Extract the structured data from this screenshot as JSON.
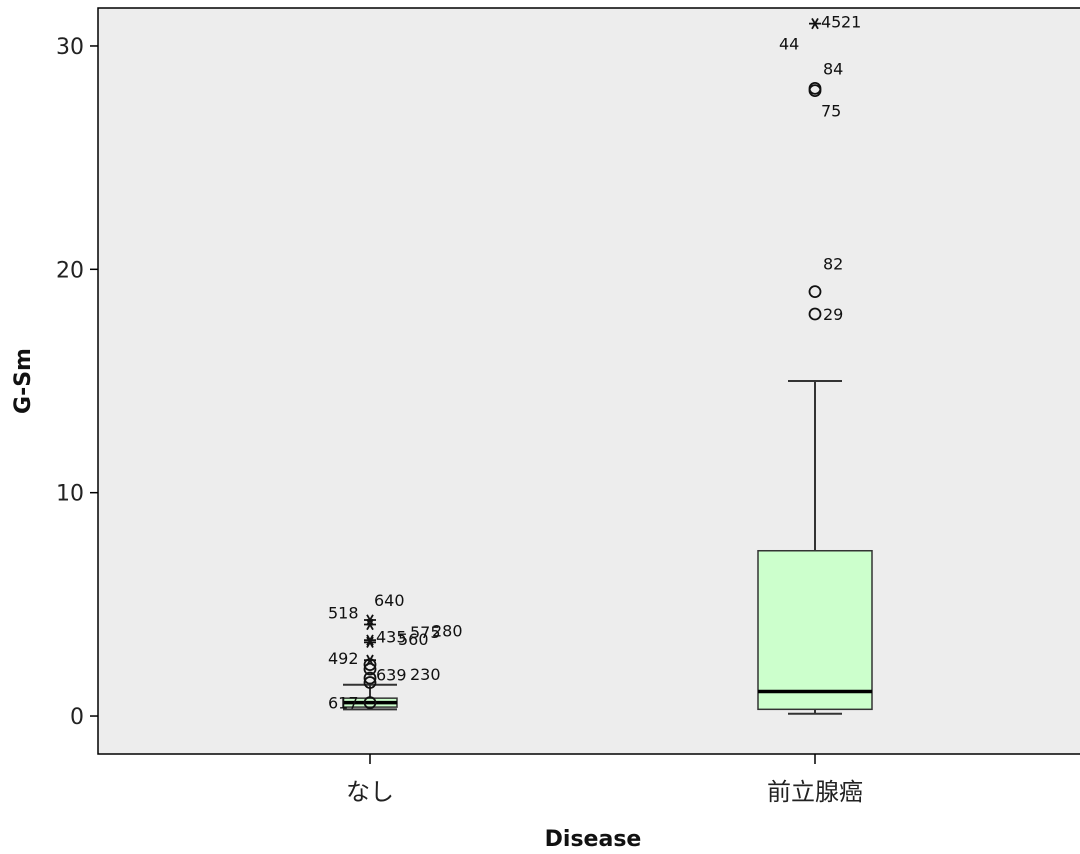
{
  "chart_data": {
    "type": "boxplot",
    "xlabel": "Disease",
    "ylabel": "G-Sm",
    "ylim": [
      -1.7,
      31.7
    ],
    "yticks": [
      0,
      10,
      20,
      30
    ],
    "categories": [
      "なし",
      "前立腺癌"
    ],
    "boxes": [
      {
        "name": "なし",
        "whisker_low": 0.3,
        "q1": 0.4,
        "median": 0.6,
        "q3": 0.8,
        "whisker_high": 1.4,
        "outliers": [
          {
            "label": "617",
            "value": 0.6,
            "marker": "circle"
          },
          {
            "label": "639",
            "value": 1.5,
            "marker": "circle"
          },
          {
            "label": "230",
            "value": 1.7,
            "marker": "circle"
          },
          {
            "label": "560",
            "value": 2.1,
            "marker": "circle"
          },
          {
            "label": "280",
            "value": 2.3,
            "marker": "circle"
          },
          {
            "label": "492",
            "value": 2.5,
            "marker": "star"
          },
          {
            "label": "435",
            "value": 3.3,
            "marker": "star"
          },
          {
            "label": "575",
            "value": 3.4,
            "marker": "star"
          },
          {
            "label": "518",
            "value": 4.1,
            "marker": "star"
          },
          {
            "label": "640",
            "value": 4.3,
            "marker": "star"
          }
        ]
      },
      {
        "name": "前立腺癌",
        "whisker_low": 0.1,
        "q1": 0.3,
        "median": 1.1,
        "q3": 7.4,
        "whisker_high": 15.0,
        "outliers": [
          {
            "label": "29",
            "value": 18.0,
            "marker": "circle"
          },
          {
            "label": "82",
            "value": 19.0,
            "marker": "circle"
          },
          {
            "label": "75",
            "value": 28.0,
            "marker": "circle"
          },
          {
            "label": "84",
            "value": 28.1,
            "marker": "circle"
          },
          {
            "label": "44",
            "value": 31.0,
            "marker": "star"
          },
          {
            "label": "45",
            "value": 31.0,
            "marker": "star"
          },
          {
            "label": "21",
            "value": 31.0,
            "marker": "star"
          }
        ]
      }
    ],
    "colors": {
      "plot_background": "#ededed",
      "box_fill": "#ccffcc",
      "box_stroke": "#333333",
      "median": "#000000"
    }
  }
}
